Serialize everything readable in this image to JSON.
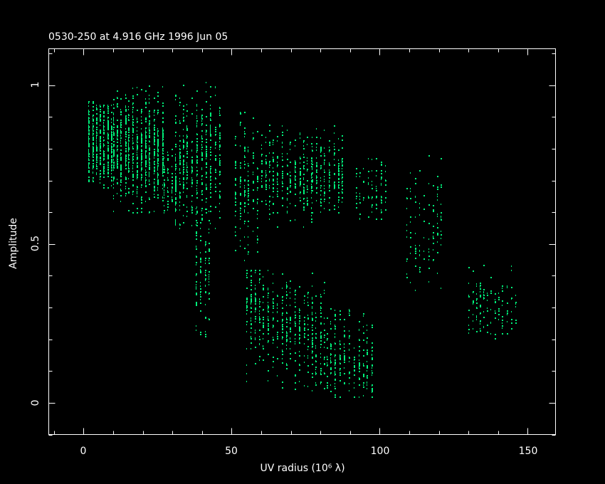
{
  "chart_data": {
    "type": "scatter",
    "title": "0530-250 at 4.916 GHz 1996 Jun 05",
    "xlabel": "UV radius  (10⁶ λ)",
    "ylabel": "Amplitude",
    "xlim": [
      -11.75,
      159.4
    ],
    "ylim": [
      -0.1,
      1.115
    ],
    "x_ticks": [
      0,
      50,
      100,
      150
    ],
    "x_tick_labels": [
      "0",
      "50",
      "100",
      "150"
    ],
    "x_minor_step": 10,
    "y_ticks": [
      0,
      0.5,
      1
    ],
    "y_tick_labels": [
      "0",
      "0.5",
      "1"
    ],
    "y_minor_step": 0.1,
    "grid": false,
    "point_color": "#00f07a",
    "axis_color": "#ffffff",
    "background": "#000000",
    "point_clusters": [
      {
        "x": [
          1.5,
          4.2
        ],
        "y_center": 0.83,
        "y_spread": 0.08,
        "y_range": [
          0.7,
          0.95
        ],
        "count": 160
      },
      {
        "x": [
          4.2,
          10
        ],
        "y_center": 0.82,
        "y_spread": 0.06,
        "y_range": [
          0.68,
          0.94
        ],
        "count": 320
      },
      {
        "x": [
          10,
          27
        ],
        "y_center": 0.8,
        "y_spread": 0.07,
        "y_range": [
          0.6,
          1.0
        ],
        "count": 900
      },
      {
        "x": [
          27,
          31
        ],
        "y_center": 0.69,
        "y_spread": 0.05,
        "y_range": [
          0.6,
          0.8
        ],
        "count": 90
      },
      {
        "x": [
          31,
          46
        ],
        "y_center": 0.77,
        "y_spread": 0.09,
        "y_range": [
          0.55,
          1.01
        ],
        "count": 480
      },
      {
        "x": [
          38,
          43
        ],
        "y_center": 0.42,
        "y_spread": 0.1,
        "y_range": [
          0.21,
          0.62
        ],
        "count": 110
      },
      {
        "x": [
          51,
          60
        ],
        "y_center": 0.68,
        "y_spread": 0.1,
        "y_range": [
          0.45,
          0.93
        ],
        "count": 170
      },
      {
        "x": [
          60,
          77
        ],
        "y_center": 0.72,
        "y_spread": 0.06,
        "y_range": [
          0.55,
          0.88
        ],
        "count": 300
      },
      {
        "x": [
          77,
          88
        ],
        "y_center": 0.72,
        "y_spread": 0.05,
        "y_range": [
          0.6,
          0.88
        ],
        "count": 200
      },
      {
        "x": [
          92,
          102
        ],
        "y_center": 0.67,
        "y_spread": 0.05,
        "y_range": [
          0.58,
          0.77
        ],
        "count": 90
      },
      {
        "x": [
          109,
          121
        ],
        "y_center": 0.56,
        "y_spread": 0.1,
        "y_range": [
          0.35,
          0.78
        ],
        "count": 110
      },
      {
        "x": [
          130,
          146
        ],
        "y_center": 0.31,
        "y_spread": 0.05,
        "y_range": [
          0.18,
          0.44
        ],
        "count": 130
      },
      {
        "x": [
          55,
          82
        ],
        "y_center": 0.25,
        "y_spread": 0.07,
        "y_range": [
          0.04,
          0.42
        ],
        "count": 520
      },
      {
        "x": [
          82,
          98
        ],
        "y_center": 0.14,
        "y_spread": 0.06,
        "y_range": [
          0.02,
          0.3
        ],
        "count": 260
      }
    ]
  }
}
